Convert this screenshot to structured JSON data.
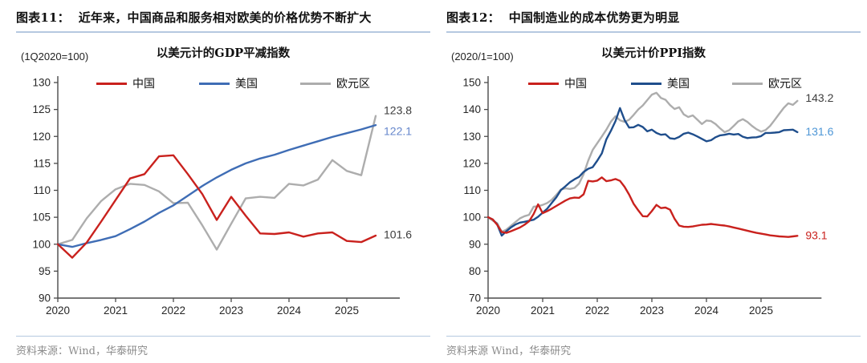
{
  "chart_data": [
    {
      "type": "line",
      "header": "图表11：  近年来，中国商品和服务相对欧美的价格优势不断扩大",
      "title": "以美元计的GDP平减指数",
      "unit_label": "(1Q2020=100)",
      "source": "资料来源：Wind，华泰研究",
      "x_start": "2020Q1",
      "x_frequency": "quarterly",
      "points_per_year": 4,
      "x_tick_labels": [
        "2020",
        "2021",
        "2022",
        "2023",
        "2024",
        "2025"
      ],
      "ylim": [
        90,
        130
      ],
      "yticks": [
        90,
        95,
        100,
        105,
        110,
        115,
        120,
        125,
        130
      ],
      "grid": false,
      "legend_position": "top",
      "series": [
        {
          "name": "中国",
          "color": "#c9211d",
          "values": [
            100,
            97.5,
            100.3,
            104.2,
            108.2,
            112.2,
            113.0,
            116.3,
            116.5,
            113.0,
            109.3,
            104.5,
            108.8,
            105.3,
            102.0,
            101.9,
            102.2,
            101.4,
            102.0,
            102.2,
            100.6,
            100.4,
            101.6
          ]
        },
        {
          "name": "美国",
          "color": "#3f6db5",
          "values": [
            100,
            99.5,
            100.2,
            100.8,
            101.5,
            102.8,
            104.2,
            105.8,
            107.2,
            109.0,
            110.8,
            112.4,
            113.8,
            115.0,
            115.9,
            116.6,
            117.5,
            118.3,
            119.1,
            119.9,
            120.6,
            121.3,
            122.1
          ]
        },
        {
          "name": "欧元区",
          "color": "#adadad",
          "values": [
            100,
            100.8,
            104.8,
            108.0,
            110.2,
            111.2,
            111.0,
            109.8,
            107.6,
            107.7,
            103.5,
            99.0,
            103.8,
            108.5,
            108.8,
            108.6,
            111.2,
            110.9,
            112.0,
            115.6,
            113.6,
            112.8,
            123.8
          ]
        }
      ],
      "end_labels": [
        {
          "text": "123.8",
          "color": "#3d3d3d",
          "v": 124.9
        },
        {
          "text": "122.1",
          "color": "#6687cc",
          "v": 121.0
        },
        {
          "text": "101.6",
          "color": "#3d3d3d",
          "v": 101.8
        }
      ]
    },
    {
      "type": "line",
      "header": "图表12：  中国制造业的成本优势更为明显",
      "title": "以美元计价PPI指数",
      "unit_label": "(2020/1=100)",
      "source": "资料来源 Wind，华泰研究",
      "x_start": "2020/1",
      "x_frequency": "monthly",
      "points_per_year": 12,
      "x_tick_labels": [
        "2020",
        "2021",
        "2022",
        "2023",
        "2024",
        "2025"
      ],
      "ylim": [
        70,
        150
      ],
      "yticks": [
        70,
        80,
        90,
        100,
        110,
        120,
        130,
        140,
        150
      ],
      "grid": false,
      "legend_position": "top",
      "series": [
        {
          "name": "中国",
          "color": "#c9211d",
          "values": [
            100,
            99.2,
            97.2,
            94.5,
            94.2,
            94.8,
            95.5,
            96.2,
            97.2,
            98.5,
            101.2,
            104.8,
            101.5,
            102.3,
            103.2,
            104.2,
            105.2,
            106.2,
            107.0,
            107.3,
            107.2,
            108.5,
            113.5,
            113.3,
            113.6,
            114.8,
            113.4,
            113.7,
            114.2,
            113.5,
            111.3,
            108.4,
            105.0,
            102.6,
            100.4,
            100.3,
            102.3,
            104.6,
            103.4,
            103.6,
            102.8,
            99.4,
            96.9,
            96.5,
            96.4,
            96.6,
            96.9,
            97.2,
            97.3,
            97.5,
            97.3,
            97.1,
            96.9,
            96.6,
            96.2,
            95.8,
            95.4,
            95.0,
            94.6,
            94.2,
            93.9,
            93.6,
            93.3,
            93.1,
            92.9,
            92.8,
            92.7,
            92.9,
            93.1
          ]
        },
        {
          "name": "美国",
          "color": "#1f4e8c",
          "values": [
            100,
            99.2,
            97.4,
            93.2,
            94.8,
            96.2,
            97.3,
            98.0,
            98.3,
            98.7,
            99.1,
            100.2,
            101.7,
            103.2,
            105.3,
            107.4,
            110.1,
            111.5,
            113.0,
            114.1,
            115.0,
            116.8,
            118.0,
            118.6,
            121.0,
            123.7,
            128.9,
            132.1,
            135.7,
            140.5,
            136.1,
            133.3,
            133.4,
            134.3,
            133.5,
            131.9,
            132.5,
            131.3,
            130.6,
            130.8,
            129.3,
            129.1,
            129.8,
            131.0,
            131.4,
            130.8,
            130.0,
            129.1,
            128.2,
            128.6,
            129.7,
            130.4,
            130.6,
            131.0,
            130.7,
            130.9,
            129.9,
            129.4,
            129.6,
            129.7,
            130.1,
            131.3,
            131.3,
            131.4,
            131.6,
            132.3,
            132.4,
            132.5,
            131.6
          ]
        },
        {
          "name": "欧元区",
          "color": "#adadad",
          "values": [
            100,
            98.8,
            97.8,
            94.6,
            95.4,
            96.8,
            98.2,
            99.6,
            100.4,
            100.9,
            103.9,
            104.1,
            104.6,
            105.3,
            106.5,
            108.3,
            110.3,
            110.7,
            110.5,
            110.9,
            112.5,
            116.0,
            121.0,
            125.0,
            127.5,
            130.0,
            132.5,
            135.5,
            137.5,
            136.0,
            135.4,
            136.2,
            138.0,
            140.0,
            141.5,
            143.5,
            145.5,
            146.2,
            144.3,
            143.6,
            141.6,
            140.2,
            140.8,
            138.2,
            137.2,
            137.8,
            136.2,
            134.6,
            135.9,
            135.7,
            134.6,
            133.0,
            131.6,
            132.3,
            133.9,
            135.6,
            136.4,
            135.4,
            133.9,
            132.7,
            131.8,
            132.4,
            133.9,
            136.1,
            138.4,
            140.6,
            142.3,
            141.7,
            143.2
          ]
        }
      ],
      "end_labels": [
        {
          "text": "143.2",
          "color": "#3d3d3d",
          "v": 144.4
        },
        {
          "text": "131.6",
          "color": "#4d96d6",
          "v": 131.9
        },
        {
          "text": "93.1",
          "color": "#c9211d",
          "v": 93.4
        }
      ]
    }
  ]
}
